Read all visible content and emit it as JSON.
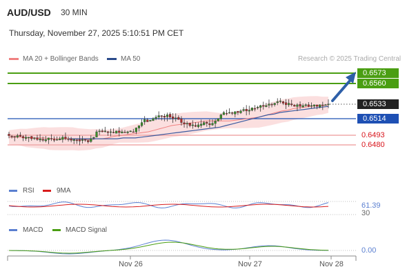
{
  "header": {
    "symbol": "AUD/USD",
    "timeframe": "30 MIN",
    "datetime": "Thursday, November 27, 2025 5:10:51 PM CET"
  },
  "legend": {
    "ma20_bb": "MA 20 + Bollinger Bands",
    "ma50": "MA 50",
    "copyright": "Research © 2025 Trading Central"
  },
  "colors": {
    "up": "#3a8f2a",
    "down": "#b22a2a",
    "resistance": "#4a9e12",
    "support": "#1e50b4",
    "pivot_red": "#d8141b",
    "bollinger": "#f6c8c8",
    "ma20": "#f08080",
    "ma50": "#3a5aa0",
    "rsi": "#5a7fd0",
    "ma9": "#d81b1b",
    "macd": "#5a7fd0",
    "macd_signal": "#4a9e12",
    "arrow": "#2e5fa8",
    "price_tag": "#222222"
  },
  "levels": {
    "r2": "0.6573",
    "r1": "0.6560",
    "last": "0.6533",
    "pivot": "0.6514",
    "s1": "0.6493",
    "s2": "0.6480"
  },
  "rsi_panel": {
    "legend_rsi": "RSI",
    "legend_ma": "9MA",
    "value": "61.39",
    "hidden_level": "30"
  },
  "macd_panel": {
    "legend_macd": "MACD",
    "legend_signal": "MACD Signal",
    "value": "0.00"
  },
  "xaxis": {
    "labels": [
      "Nov 26",
      "Nov 27",
      "Nov 28"
    ]
  },
  "chart_data": {
    "type": "candlestick",
    "title": "AUD/USD 30 MIN",
    "ylim": [
      0.647,
      0.658
    ],
    "close_series": [
      0.6492,
      0.6491,
      0.649,
      0.6492,
      0.6491,
      0.6489,
      0.649,
      0.649,
      0.6488,
      0.6489,
      0.6487,
      0.6488,
      0.6486,
      0.6487,
      0.6489,
      0.6488,
      0.6486,
      0.6487,
      0.6488,
      0.649,
      0.6488,
      0.6487,
      0.6486,
      0.6487,
      0.6486,
      0.6485,
      0.6487,
      0.6486,
      0.6484,
      0.6488,
      0.649,
      0.6497,
      0.6498,
      0.6497,
      0.6498,
      0.6496,
      0.6497,
      0.6496,
      0.6498,
      0.6496,
      0.6497,
      0.6496,
      0.6497,
      0.6498,
      0.6497,
      0.6502,
      0.6505,
      0.6509,
      0.6513,
      0.651,
      0.6512,
      0.6514,
      0.6516,
      0.6518,
      0.6517,
      0.6516,
      0.6519,
      0.6516,
      0.6514,
      0.6515,
      0.6513,
      0.6509,
      0.6507,
      0.6508,
      0.6505,
      0.6506,
      0.6504,
      0.6506,
      0.6507,
      0.6509,
      0.6508,
      0.6506,
      0.6508,
      0.6511,
      0.6514,
      0.6519,
      0.6522,
      0.6521,
      0.6522,
      0.6521,
      0.6523,
      0.6522,
      0.6524,
      0.6526,
      0.6524,
      0.6525,
      0.6528,
      0.6527,
      0.6529,
      0.6531,
      0.653,
      0.6531,
      0.6533,
      0.6532,
      0.6534,
      0.6536,
      0.6537,
      0.6534,
      0.6532,
      0.6534,
      0.6532,
      0.653,
      0.6532,
      0.653,
      0.6531,
      0.6532,
      0.653,
      0.6531,
      0.6532,
      0.653,
      0.6532,
      0.6531,
      0.6532,
      0.6533
    ],
    "ma20": [
      0.649,
      0.649,
      0.649,
      0.6489,
      0.6489,
      0.6489,
      0.6489,
      0.6488,
      0.6488,
      0.6488,
      0.6488,
      0.6488,
      0.6487,
      0.6487,
      0.6487,
      0.6488,
      0.6488,
      0.6489,
      0.6491,
      0.6492,
      0.6493,
      0.6494,
      0.6495,
      0.6496,
      0.6497,
      0.6499,
      0.6501,
      0.6503,
      0.6505,
      0.6506,
      0.6507,
      0.6508,
      0.6509,
      0.651,
      0.6511,
      0.6511,
      0.6511,
      0.6511,
      0.6511,
      0.6512,
      0.6513,
      0.6514,
      0.6515,
      0.6516,
      0.6518,
      0.652,
      0.6522,
      0.6524,
      0.6525,
      0.6527,
      0.6528,
      0.6529,
      0.653,
      0.6531,
      0.6531,
      0.6532
    ],
    "ma50": [
      0.6488,
      0.6488,
      0.6488,
      0.6488,
      0.6488,
      0.6488,
      0.6488,
      0.6488,
      0.6488,
      0.6489,
      0.6489,
      0.6489,
      0.649,
      0.6491,
      0.6492,
      0.6493,
      0.6494,
      0.6495,
      0.6496,
      0.6497,
      0.6498,
      0.6499,
      0.65,
      0.6501,
      0.6502,
      0.6503,
      0.6505,
      0.6507,
      0.6509,
      0.6511,
      0.6513,
      0.6515,
      0.6517,
      0.6519,
      0.652,
      0.6522,
      0.6523,
      0.6524,
      0.6525,
      0.6526,
      0.6527,
      0.6528,
      0.6529,
      0.653
    ],
    "projection": {
      "from": 0.6533,
      "to": 0.6573
    },
    "rsi_value": 61.39,
    "macd_value": 0.0
  }
}
